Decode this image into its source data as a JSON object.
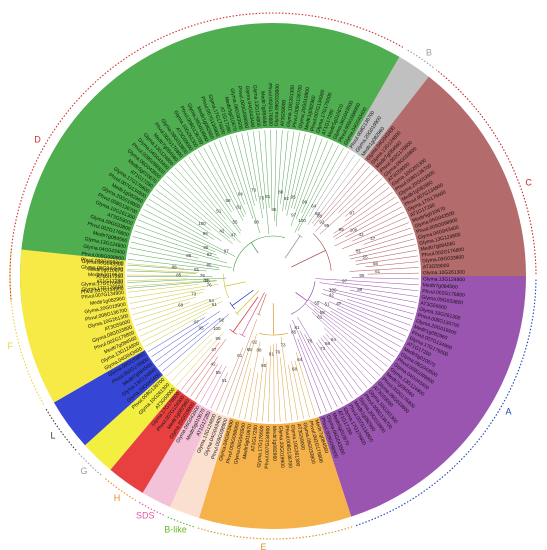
{
  "figure": {
    "clades": [
      {
        "key": "D",
        "label": "D",
        "color": "#4fae4f",
        "label_color": "#d32f2f"
      },
      {
        "key": "B",
        "label": "B",
        "color": "#c0c0c0",
        "label_color": "#9e9e9e"
      },
      {
        "key": "C",
        "label": "C",
        "color": "#b36b6b",
        "label_color": "#c62828"
      },
      {
        "key": "A",
        "label": "A",
        "color": "#9a55b0",
        "label_color": "#1a47b8"
      },
      {
        "key": "E",
        "label": "E",
        "color": "#f6b24a",
        "label_color": "#e0922e"
      },
      {
        "key": "B-like",
        "label": "B-like",
        "color": "#fbe0d0",
        "label_color": "#66bb22"
      },
      {
        "key": "SDS",
        "label": "SDS",
        "color": "#f4c2d8",
        "label_color": "#e05aa0"
      },
      {
        "key": "H",
        "label": "H",
        "color": "#e84040",
        "label_color": "#f08a2a"
      },
      {
        "key": "G",
        "label": "G",
        "color": "#f3ef40",
        "label_color": "#9e9e9e"
      },
      {
        "key": "L",
        "label": "L",
        "color": "#3545d6",
        "label_color": "#3a3a3a"
      },
      {
        "key": "F",
        "label": "F",
        "color": "#f7ea47",
        "label_color": "#e8d63a"
      }
    ],
    "sample_leaves": [
      "Glyma.04G043400",
      "Phvul.009G098900",
      "Glyma.06G043500",
      "Medtr5g010670",
      "AT1G17280",
      "Glyma.17G176600",
      "Phvul.007G134900",
      "Medtr1g082960",
      "Glyma.20G019900",
      "Phvul.008G136700",
      "Glyma.10G261300",
      "AT3G59000",
      "Glyma.09G033800",
      "Phvul.002G176800",
      "Medtr7g084560",
      "Glyma.13G124800"
    ],
    "sample_bootstraps": [
      "100",
      "99",
      "97",
      "95",
      "92",
      "88",
      "85",
      "81",
      "76",
      "73",
      "68",
      "64",
      "61",
      "58",
      "55",
      "51",
      "47",
      "42"
    ]
  }
}
